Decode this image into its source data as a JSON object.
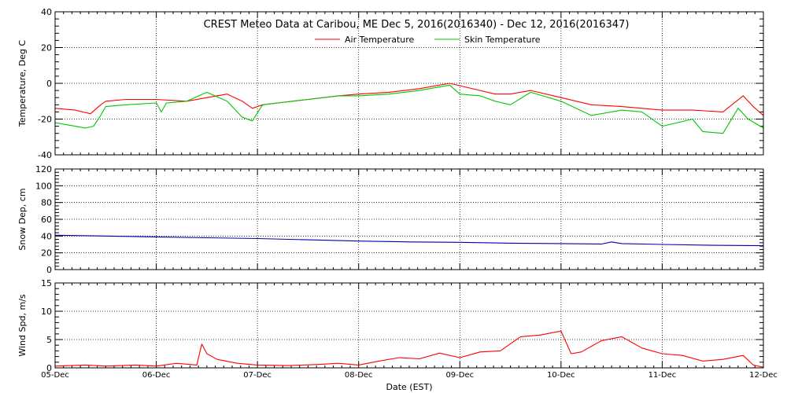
{
  "chart_data": [
    {
      "type": "line",
      "title": "CREST Meteo Data at Caribou, ME   Dec  5, 2016(2016340) - Dec 12, 2016(2016347)",
      "ylabel": "Temperature, Deg C",
      "ylim": [
        -40,
        40
      ],
      "yticks": [
        "-40",
        "-20",
        "0",
        "20",
        "40"
      ],
      "grid": true,
      "legend": "top-center",
      "series": [
        {
          "name": "Air Temperature",
          "color": "#ff0000",
          "x": [
            0,
            0.2,
            0.35,
            0.45,
            0.5,
            0.7,
            1.0,
            1.3,
            1.5,
            1.7,
            1.85,
            1.95,
            2.05,
            2.2,
            2.5,
            2.8,
            3.0,
            3.3,
            3.6,
            3.9,
            4.2,
            4.35,
            4.5,
            4.7,
            5.0,
            5.3,
            5.6,
            5.8,
            6.0,
            6.3,
            6.6,
            6.8,
            6.9,
            7.0
          ],
          "values": [
            -14,
            -15,
            -17,
            -12,
            -10,
            -9,
            -9,
            -10,
            -8,
            -6,
            -10,
            -14,
            -12,
            -11,
            -9,
            -7,
            -6,
            -5,
            -3,
            0,
            -4,
            -6,
            -6,
            -4,
            -8,
            -12,
            -13,
            -14,
            -15,
            -15,
            -16,
            -7,
            -13,
            -18
          ]
        },
        {
          "name": "Skin Temperature",
          "color": "#00c800",
          "x": [
            0,
            0.2,
            0.3,
            0.38,
            0.45,
            0.5,
            0.7,
            1.0,
            1.05,
            1.1,
            1.3,
            1.5,
            1.7,
            1.85,
            1.95,
            2.05,
            2.2,
            2.5,
            2.8,
            3.0,
            3.3,
            3.6,
            3.9,
            4.0,
            4.2,
            4.35,
            4.5,
            4.7,
            5.0,
            5.3,
            5.6,
            5.8,
            6.0,
            6.3,
            6.4,
            6.6,
            6.75,
            6.85,
            7.0
          ],
          "values": [
            -22,
            -24,
            -25,
            -24,
            -18,
            -13,
            -12,
            -11,
            -16,
            -11,
            -10,
            -5,
            -10,
            -19,
            -21,
            -12,
            -11,
            -9,
            -7,
            -7,
            -6,
            -4,
            -1,
            -6,
            -7,
            -10,
            -12,
            -5,
            -10,
            -18,
            -15,
            -16,
            -24,
            -20,
            -27,
            -28,
            -14,
            -20,
            -25
          ]
        }
      ]
    },
    {
      "type": "line",
      "ylabel": "Snow Dep, cm",
      "ylim": [
        0,
        120
      ],
      "yticks": [
        "0",
        "20",
        "40",
        "60",
        "80",
        "100",
        "120"
      ],
      "grid": true,
      "series": [
        {
          "color": "#0000b4",
          "x": [
            0,
            0.5,
            1.0,
            1.5,
            2.0,
            2.5,
            3.0,
            3.5,
            4.0,
            4.5,
            5.0,
            5.4,
            5.5,
            5.6,
            6.0,
            6.5,
            7.0
          ],
          "values": [
            41,
            40,
            39,
            38,
            37,
            35.5,
            34,
            33,
            32.5,
            31.5,
            31,
            30.5,
            33,
            31,
            30,
            29,
            28.5
          ]
        }
      ]
    },
    {
      "type": "line",
      "xlabel": "Date (EST)",
      "ylabel": "Wind Spd, m/s",
      "ylim": [
        0,
        15
      ],
      "yticks": [
        "0",
        "5",
        "10",
        "15"
      ],
      "xticks": [
        "05-Dec",
        "06-Dec",
        "07-Dec",
        "08-Dec",
        "09-Dec",
        "10-Dec",
        "11-Dec",
        "12-Dec"
      ],
      "grid": true,
      "series": [
        {
          "color": "#ff0000",
          "x": [
            0,
            0.3,
            0.5,
            0.8,
            1.0,
            1.2,
            1.4,
            1.45,
            1.5,
            1.6,
            1.8,
            2.0,
            2.3,
            2.6,
            2.8,
            3.0,
            3.2,
            3.4,
            3.6,
            3.8,
            4.0,
            4.2,
            4.4,
            4.6,
            4.8,
            5.0,
            5.1,
            5.2,
            5.4,
            5.6,
            5.8,
            6.0,
            6.2,
            6.4,
            6.6,
            6.8,
            6.9,
            7.0
          ],
          "values": [
            0.3,
            0.5,
            0.3,
            0.5,
            0.3,
            0.8,
            0.5,
            4.2,
            2.5,
            1.5,
            0.8,
            0.5,
            0.4,
            0.6,
            0.8,
            0.5,
            1.2,
            1.8,
            1.6,
            2.6,
            1.8,
            2.8,
            3.0,
            5.5,
            5.8,
            6.5,
            2.5,
            2.8,
            4.8,
            5.5,
            3.5,
            2.5,
            2.2,
            1.2,
            1.5,
            2.2,
            0.5,
            0.1
          ]
        }
      ]
    }
  ]
}
